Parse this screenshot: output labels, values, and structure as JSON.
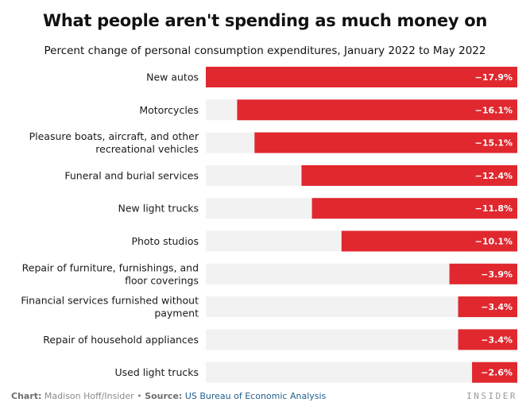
{
  "chart_data": {
    "type": "bar",
    "orientation": "horizontal",
    "title": "What people aren't spending as much money on",
    "subtitle": "Percent change of personal consumption expenditures, January 2022 to May 2022",
    "categories": [
      [
        "New autos"
      ],
      [
        "Motorcycles"
      ],
      [
        "Pleasure boats, aircraft, and other",
        "recreational vehicles"
      ],
      [
        "Funeral and burial services"
      ],
      [
        "New light trucks"
      ],
      [
        "Photo studios"
      ],
      [
        "Repair of furniture, furnishings, and",
        "floor coverings"
      ],
      [
        "Financial services furnished without",
        "payment"
      ],
      [
        "Repair of household appliances"
      ],
      [
        "Used light trucks"
      ]
    ],
    "values": [
      -17.9,
      -16.1,
      -15.1,
      -12.4,
      -11.8,
      -10.1,
      -3.9,
      -3.4,
      -3.4,
      -2.6
    ],
    "value_labels": [
      "−17.9%",
      "−16.1%",
      "−15.1%",
      "−12.4%",
      "−11.8%",
      "−10.1%",
      "−3.9%",
      "−3.4%",
      "−3.4%",
      "−2.6%"
    ],
    "xlim": [
      -17.9,
      0
    ],
    "bar_color": "#e0282e",
    "track_color": "#f2f2f2"
  },
  "footer": {
    "chart_label": "Chart:",
    "chart_author": "Madison Hoff/Insider",
    "separator": "•",
    "source_label": "Source:",
    "source_name": "US Bureau of Economic Analysis"
  },
  "brand": "INSIDER"
}
